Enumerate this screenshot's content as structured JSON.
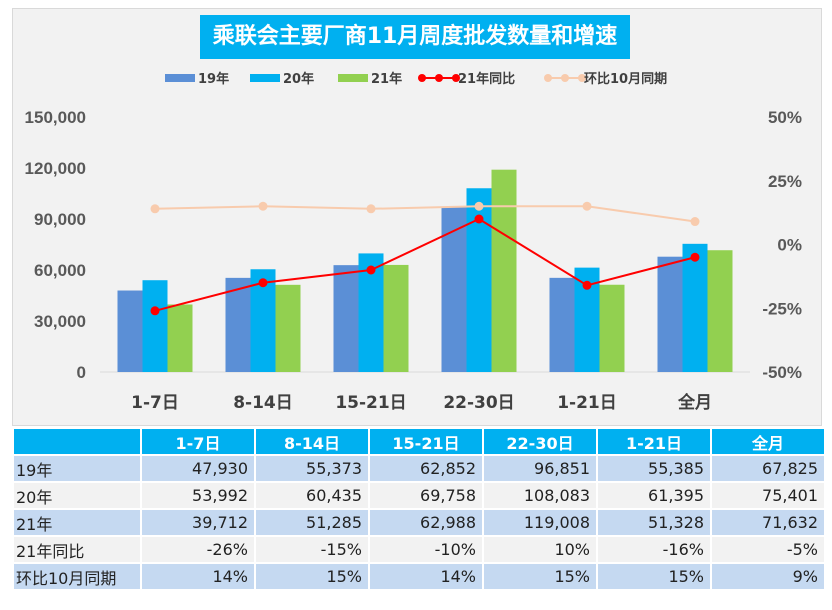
{
  "chart_data": {
    "type": "bar",
    "title": "乘联会主要厂商11月周度批发数量和增速",
    "categories": [
      "1-7日",
      "8-14日",
      "15-21日",
      "22-30日",
      "1-21日",
      "全月"
    ],
    "series": [
      {
        "name": "19年",
        "kind": "bar",
        "axis": "left",
        "color": "#5b8fd6",
        "values": [
          47930,
          55373,
          62852,
          96851,
          55385,
          67825
        ]
      },
      {
        "name": "20年",
        "kind": "bar",
        "axis": "left",
        "color": "#00b0f0",
        "values": [
          53992,
          60435,
          69758,
          108083,
          61395,
          75401
        ]
      },
      {
        "name": "21年",
        "kind": "bar",
        "axis": "left",
        "color": "#92d050",
        "values": [
          39712,
          51285,
          62988,
          119008,
          51328,
          71632
        ]
      },
      {
        "name": "21年同比",
        "kind": "line",
        "axis": "right",
        "color": "#ff0000",
        "values": [
          -26,
          -15,
          -10,
          10,
          -16,
          -5
        ]
      },
      {
        "name": "环比10月同期",
        "kind": "line",
        "axis": "right",
        "color": "#f8cbad",
        "values": [
          14,
          15,
          14,
          15,
          15,
          9
        ]
      }
    ],
    "y_left": {
      "range": [
        0,
        150000
      ],
      "ticks": [
        "0",
        "30,000",
        "60,000",
        "90,000",
        "120,000",
        "150,000"
      ]
    },
    "y_right": {
      "range": [
        -50,
        50
      ],
      "unit": "%",
      "ticks": [
        "-50%",
        "-25%",
        "0%",
        "25%",
        "50%"
      ]
    },
    "legend": "top",
    "grid": false
  },
  "table": {
    "headers": [
      "",
      "1-7日",
      "8-14日",
      "15-21日",
      "22-30日",
      "1-21日",
      "全月"
    ],
    "rows": [
      {
        "label": "19年",
        "cells": [
          "47,930",
          "55,373",
          "62,852",
          "96,851",
          "55,385",
          "67,825"
        ]
      },
      {
        "label": "20年",
        "cells": [
          "53,992",
          "60,435",
          "69,758",
          "108,083",
          "61,395",
          "75,401"
        ]
      },
      {
        "label": "21年",
        "cells": [
          "39,712",
          "51,285",
          "62,988",
          "119,008",
          "51,328",
          "71,632"
        ]
      },
      {
        "label": "21年同比",
        "cells": [
          "-26%",
          "-15%",
          "-10%",
          "10%",
          "-16%",
          "-5%"
        ]
      },
      {
        "label": "环比10月同期",
        "cells": [
          "14%",
          "15%",
          "14%",
          "15%",
          "15%",
          "9%"
        ]
      }
    ]
  }
}
